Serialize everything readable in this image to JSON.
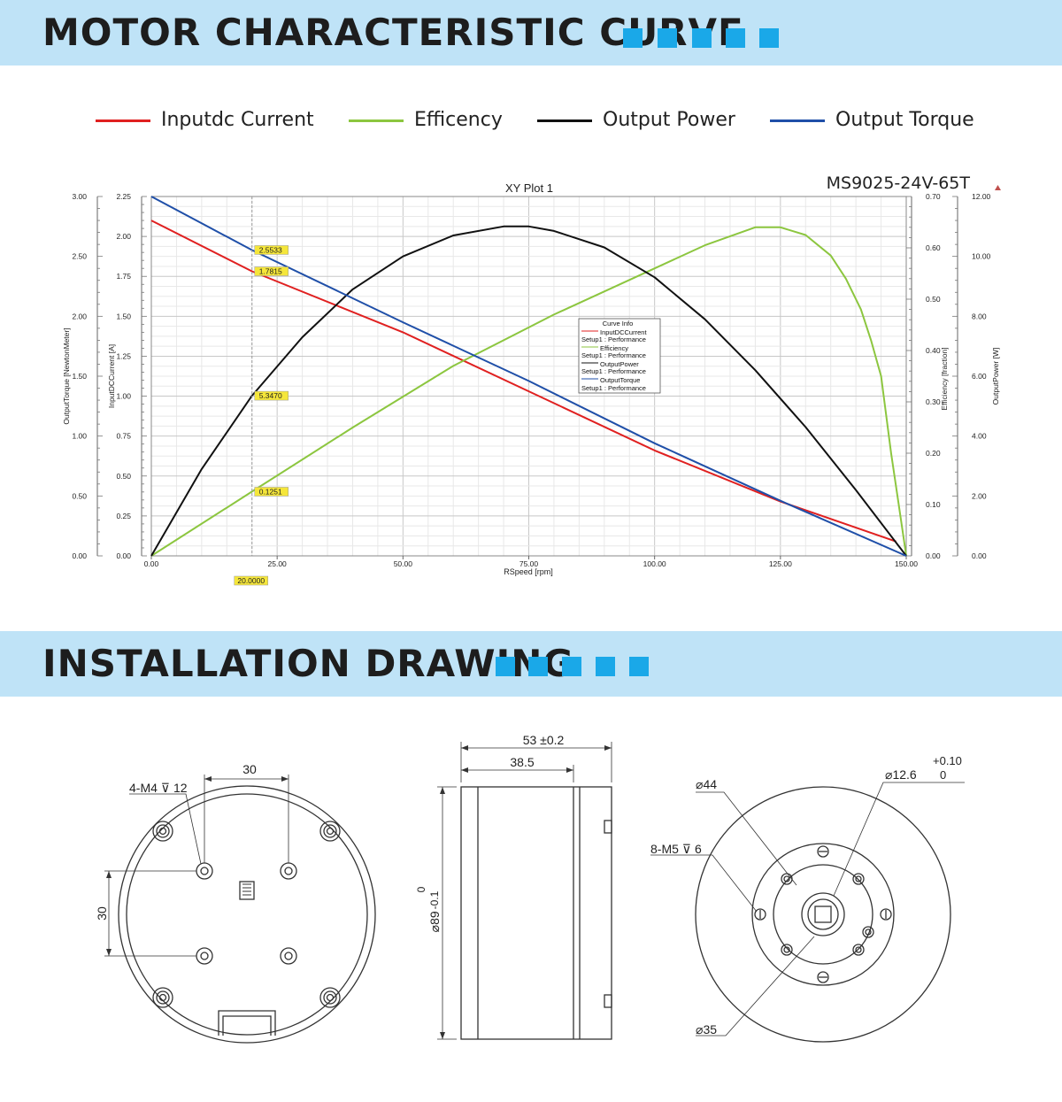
{
  "section1": {
    "title": "MOTOR CHARACTERISTIC CURVE"
  },
  "section2": {
    "title": "INSTALLATION DRAWING"
  },
  "legend": [
    {
      "label": "Inputdc Current",
      "color": "#e02020"
    },
    {
      "label": "Efficency",
      "color": "#8cc63f"
    },
    {
      "label": "Output Power",
      "color": "#111111"
    },
    {
      "label": "Output Torque",
      "color": "#1f4fa8"
    }
  ],
  "chart_data": {
    "type": "line",
    "title": "XY Plot 1",
    "model": "MS9025-24V-65T",
    "xlabel": "RSpeed [rpm]",
    "xlim": [
      0,
      150
    ],
    "x_ticks": [
      "0.00",
      "25.00",
      "50.00",
      "75.00",
      "100.00",
      "125.00",
      "150.00"
    ],
    "axes": {
      "torque": {
        "label": "OutputTorque [NewtonMeter]",
        "ylim": [
          0,
          3
        ],
        "ticks": [
          "0.00",
          "0.50",
          "1.00",
          "1.50",
          "2.00",
          "2.50",
          "3.00"
        ]
      },
      "current": {
        "label": "InputDCCurrent [A]",
        "ylim": [
          0,
          2.25
        ],
        "ticks": [
          "0.00",
          "0.25",
          "0.50",
          "0.75",
          "1.00",
          "1.25",
          "1.50",
          "1.75",
          "2.00",
          "2.25"
        ]
      },
      "efficiency": {
        "label": "Efficiency [fraction]",
        "ylim": [
          0,
          0.7
        ],
        "ticks": [
          "0.00",
          "0.10",
          "0.20",
          "0.30",
          "0.40",
          "0.50",
          "0.60",
          "0.70"
        ]
      },
      "power": {
        "label": "OutputPower [W]",
        "ylim": [
          0,
          12
        ],
        "ticks": [
          "0.00",
          "2.00",
          "4.00",
          "6.00",
          "8.00",
          "10.00",
          "12.00"
        ]
      }
    },
    "series": [
      {
        "key": "current",
        "axis": "current",
        "color": "#e02020",
        "x": [
          0,
          20,
          50,
          75,
          100,
          125,
          148
        ],
        "y": [
          2.1,
          1.7815,
          1.4,
          1.03,
          0.66,
          0.34,
          0.09
        ]
      },
      {
        "key": "efficiency",
        "axis": "efficiency",
        "color": "#8cc63f",
        "x": [
          0,
          20,
          40,
          60,
          80,
          100,
          110,
          120,
          125,
          130,
          135,
          138,
          141,
          143,
          145,
          147,
          148.5,
          150
        ],
        "y": [
          0,
          0.1251,
          0.25,
          0.37,
          0.47,
          0.56,
          0.605,
          0.64,
          0.64,
          0.625,
          0.585,
          0.54,
          0.48,
          0.42,
          0.35,
          0.2,
          0.1,
          0
        ]
      },
      {
        "key": "power",
        "axis": "power",
        "color": "#111111",
        "x": [
          0,
          10,
          20,
          30,
          40,
          50,
          60,
          70,
          75,
          80,
          90,
          100,
          110,
          120,
          130,
          140,
          150
        ],
        "y": [
          0,
          2.9,
          5.347,
          7.3,
          8.9,
          10.0,
          10.7,
          11.0,
          11.0,
          10.85,
          10.3,
          9.3,
          7.9,
          6.2,
          4.3,
          2.2,
          0
        ]
      },
      {
        "key": "torque",
        "axis": "torque",
        "color": "#1f4fa8",
        "x": [
          0,
          20,
          50,
          75,
          100,
          125,
          150
        ],
        "y": [
          3.0,
          2.5533,
          1.95,
          1.46,
          0.94,
          0.46,
          0
        ]
      }
    ],
    "markers": {
      "x": 20,
      "x_label": "20.0000",
      "labels": [
        "2.5533",
        "1.7815",
        "5.3470",
        "0.1251"
      ]
    },
    "curve_info": {
      "title": "Curve Info",
      "rows": [
        {
          "name": "InputDCCurrent",
          "sub": "Setup1 : Performance"
        },
        {
          "name": "Efficiency",
          "sub": "Setup1 : Performance"
        },
        {
          "name": "OutputPower",
          "sub": "Setup1 : Performance"
        },
        {
          "name": "OutputTorque",
          "sub": "Setup1 : Performance"
        }
      ]
    }
  },
  "drawing": {
    "view1": {
      "dim_30_top": "30",
      "dim_30_left": "30",
      "hole_note": "4-M4",
      "hole_depth": "12"
    },
    "view2": {
      "dim_53": "53 ±0.2",
      "dim_38": "38.5",
      "dia_tol_top": "0",
      "dia_label": "89",
      "dia_tol_bottom": "-0.1"
    },
    "view3": {
      "dia_44": "44",
      "dia_12": "12.6",
      "tol_upper": "+0.10",
      "tol_lower": "0",
      "hole_note": "8-M5",
      "hole_depth": "6",
      "dia_35": "35"
    }
  }
}
